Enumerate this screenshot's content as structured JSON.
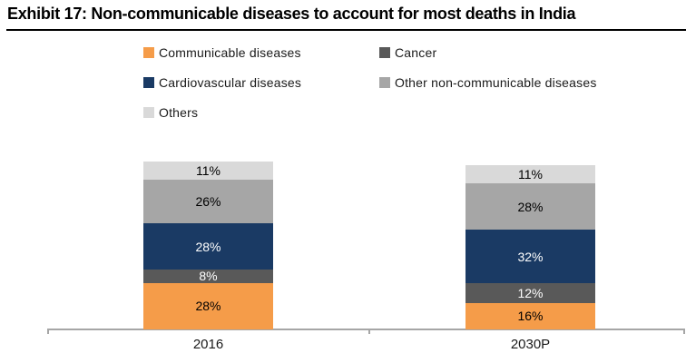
{
  "title": "Exhibit 17: Non-communicable diseases to account for most deaths in India",
  "legend": {
    "items": [
      {
        "label": "Communicable diseases",
        "color": "#F59C49"
      },
      {
        "label": "Cancer",
        "color": "#595959"
      },
      {
        "label": "Cardiovascular diseases",
        "color": "#1A3A64"
      },
      {
        "label": "Other non-communicable diseases",
        "color": "#A6A6A6"
      },
      {
        "label": "Others",
        "color": "#D9D9D9"
      }
    ],
    "position": "top",
    "columns": 2
  },
  "chart_data": {
    "type": "bar",
    "stacked": true,
    "title": "Exhibit 17: Non-communicable diseases to account for most deaths in India",
    "categories": [
      "2016",
      "2030P"
    ],
    "series": [
      {
        "name": "Communicable diseases",
        "color": "#F59C49",
        "text_color": "#000000",
        "values": [
          28,
          16
        ]
      },
      {
        "name": "Cancer",
        "color": "#595959",
        "text_color": "#FFFFFF",
        "values": [
          8,
          12
        ]
      },
      {
        "name": "Cardiovascular diseases",
        "color": "#1A3A64",
        "text_color": "#FFFFFF",
        "values": [
          28,
          32
        ]
      },
      {
        "name": "Other non-communicable diseases",
        "color": "#A6A6A6",
        "text_color": "#000000",
        "values": [
          26,
          28
        ]
      },
      {
        "name": "Others",
        "color": "#D9D9D9",
        "text_color": "#000000",
        "values": [
          11,
          11
        ]
      }
    ],
    "value_suffix": "%",
    "data_labels": "inside",
    "xlabel": "",
    "ylabel": "",
    "grid": false,
    "axis_color": "#A6A6A6",
    "legend_position": "top"
  }
}
